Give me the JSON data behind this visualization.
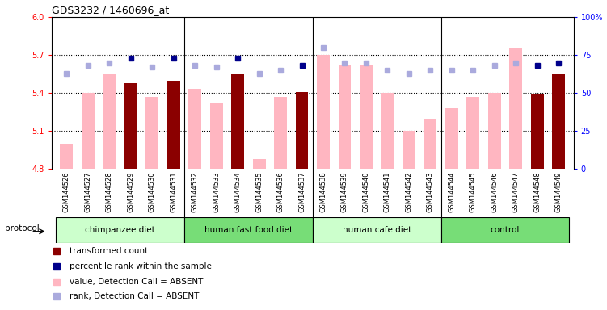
{
  "title": "GDS3232 / 1460696_at",
  "samples": [
    "GSM144526",
    "GSM144527",
    "GSM144528",
    "GSM144529",
    "GSM144530",
    "GSM144531",
    "GSM144532",
    "GSM144533",
    "GSM144534",
    "GSM144535",
    "GSM144536",
    "GSM144537",
    "GSM144538",
    "GSM144539",
    "GSM144540",
    "GSM144541",
    "GSM144542",
    "GSM144543",
    "GSM144544",
    "GSM144545",
    "GSM144546",
    "GSM144547",
    "GSM144548",
    "GSM144549"
  ],
  "values": [
    5.0,
    5.4,
    5.55,
    5.48,
    5.37,
    5.5,
    5.43,
    5.32,
    5.55,
    4.88,
    5.37,
    5.41,
    5.7,
    5.62,
    5.62,
    5.4,
    5.1,
    5.2,
    5.28,
    5.37,
    5.4,
    5.75,
    5.39,
    5.55
  ],
  "ranks": [
    63,
    68,
    70,
    73,
    67,
    73,
    68,
    67,
    73,
    63,
    65,
    68,
    80,
    70,
    70,
    65,
    63,
    65,
    65,
    65,
    68,
    70,
    68,
    70
  ],
  "is_dark_red": [
    false,
    false,
    false,
    true,
    false,
    true,
    false,
    false,
    true,
    false,
    false,
    true,
    false,
    false,
    false,
    false,
    false,
    false,
    false,
    false,
    false,
    false,
    true,
    true
  ],
  "is_dark_blue": [
    false,
    false,
    false,
    true,
    false,
    true,
    false,
    false,
    true,
    false,
    false,
    true,
    false,
    false,
    false,
    false,
    false,
    false,
    false,
    false,
    false,
    false,
    true,
    true
  ],
  "groups": [
    {
      "label": "chimpanzee diet",
      "start": 0,
      "end": 6
    },
    {
      "label": "human fast food diet",
      "start": 6,
      "end": 12
    },
    {
      "label": "human cafe diet",
      "start": 12,
      "end": 18
    },
    {
      "label": "control",
      "start": 18,
      "end": 24
    }
  ],
  "group_colors": [
    "#ccffcc",
    "#99ee99",
    "#ccffcc",
    "#66dd66"
  ],
  "protocol_label": "protocol",
  "ylim_left": [
    4.8,
    6.0
  ],
  "ylim_right": [
    0,
    100
  ],
  "yticks_left": [
    4.8,
    5.1,
    5.4,
    5.7,
    6.0
  ],
  "yticks_right": [
    0,
    25,
    50,
    75,
    100
  ],
  "ytick_labels_right": [
    "0",
    "25",
    "50",
    "75",
    "100%"
  ],
  "bar_color_dark": "#8B0000",
  "bar_color_light": "#FFB6C1",
  "rank_color_dark": "#00008B",
  "rank_color_light": "#AAAADD",
  "legend_items": [
    {
      "color": "#8B0000",
      "label": "transformed count"
    },
    {
      "color": "#00008B",
      "label": "percentile rank within the sample"
    },
    {
      "color": "#FFB6C1",
      "label": "value, Detection Call = ABSENT"
    },
    {
      "color": "#AAAADD",
      "label": "rank, Detection Call = ABSENT"
    }
  ],
  "tick_bg_color": "#DDDDDD"
}
